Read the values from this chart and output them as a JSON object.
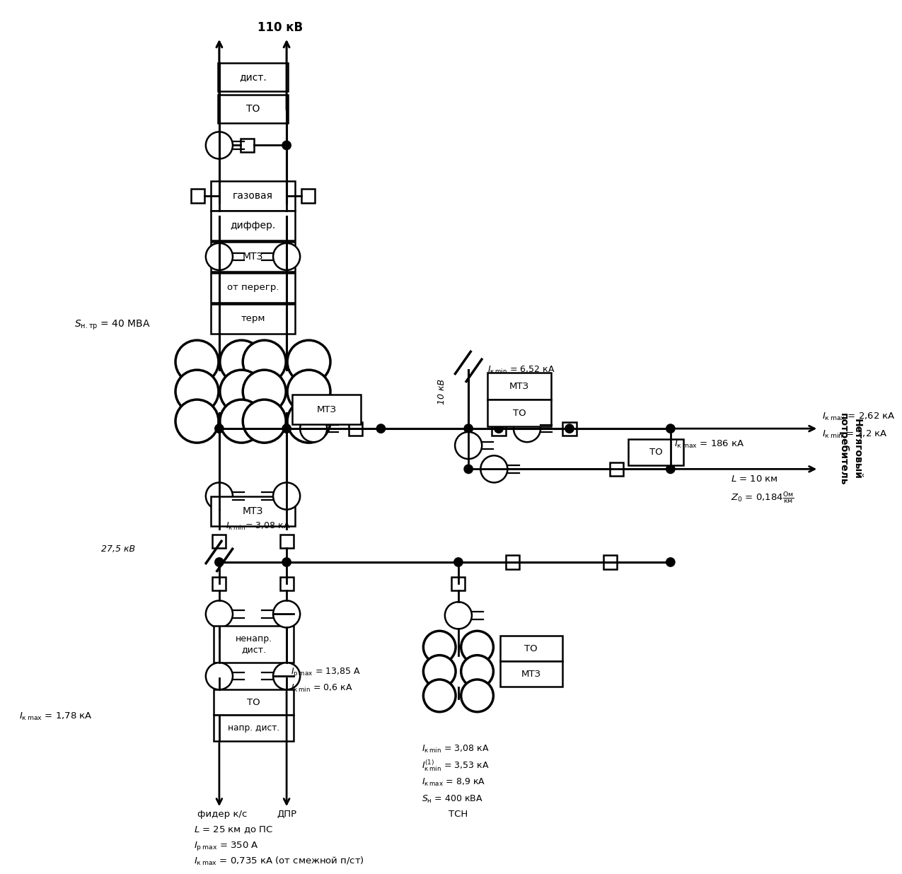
{
  "figsize": [
    12.69,
    12.1
  ],
  "dpi": 100,
  "xlim": [
    0,
    12.69
  ],
  "ylim": [
    0,
    12.1
  ],
  "xL": 3.15,
  "xR": 4.15,
  "y35": 5.85,
  "y27bus": 3.87,
  "x10": 6.85,
  "xF": 3.15,
  "xD": 4.15,
  "xT": 6.7,
  "labels": {
    "110kV": "110 кВ",
    "dist": "дист.",
    "TO": "ТО",
    "gazovaya": "газовая",
    "differ": "диффер.",
    "MTZ": "МТЗ",
    "ot_peregr": "от перегр.",
    "term": "терм",
    "Snt": "$S_{\\rm н.тр}$ = 40 МВА",
    "kV275": "27,5 кВ",
    "Ikmin_308": "$I_{\\rm к\\,min}$= 3,08 кА",
    "nenapr_dist": "ненапр.\nдист.",
    "napr_dist": "напр. дист.",
    "Ipmax_1385": "$I_{\\rm р\\,max}$ = 13,85 А",
    "Ikmin_06": "$I_{\\rm к\\,min}$ = 0,6 кА",
    "Ikmax_178": "$I_{\\rm к\\,max}$ = 1,78 кА",
    "fider": "фидер к/с",
    "DPR": "ДПР",
    "TSN": "ТСН",
    "L25": "$L$ = 25 км до ПС",
    "Ipmax_350": "$I_{\\rm р\\,max}$ = 350 А",
    "Ikmax_0735": "$I_{\\rm к\\,max}$ = 0,735 кА (от смежной п/ст)",
    "kV10": "10 кВ",
    "Ikmin_652": "$I_{\\rm к\\,min}$ = 6,52 кА",
    "Ikmax_262": "$I_{\\rm к\\,max}$ = 2,62 кА",
    "Ikmin_22": "$I_{\\rm к\\,min}$ = 2,2 кА",
    "Ikmax_186": "$I_{\\rm к\\,max}$ = 186 кА",
    "L10": "$L$ = 10 км",
    "Z0": "$Z_0$ = 0,184$\\frac{\\rm Ом}{\\rm км}$",
    "Ikmin_308b": "$I_{\\rm к\\,min}$ = 3,08 кА",
    "Ikmin1_353": "$I_{\\rm к\\,min}^{(1)}$ = 3,53 кА",
    "Ikmax_89": "$I_{\\rm к\\,max}$ = 8,9 кА",
    "Sn_400": "$S_{\\rm н}$ = 400 кВА",
    "potrebitel": "Нетяговый\nпотребитель"
  }
}
